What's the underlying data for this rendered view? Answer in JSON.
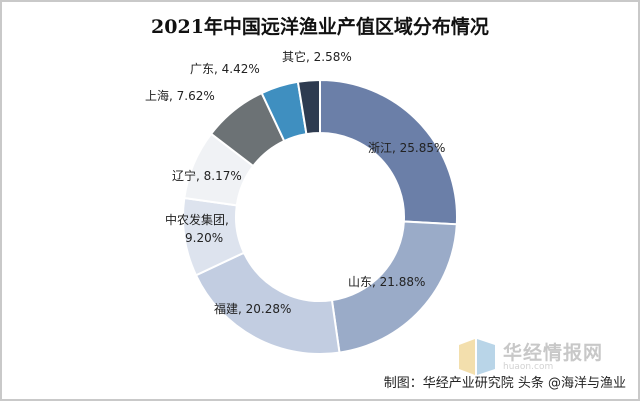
{
  "chart_data": {
    "type": "pie",
    "title": "2021年中国远洋渔业产值区域分布情况",
    "categories": [
      "浙江",
      "山东",
      "福建",
      "中农发集团",
      "辽宁",
      "上海",
      "广东",
      "其它"
    ],
    "values": [
      25.85,
      21.88,
      20.28,
      9.2,
      8.17,
      7.62,
      4.42,
      2.58
    ],
    "unit": "%",
    "labels": [
      "浙江, 25.85%",
      "山东, 21.88%",
      "福建, 20.28%",
      "中农发集团, 9.20%",
      "辽宁, 8.17%",
      "上海, 7.62%",
      "广东, 4.42%",
      "其它, 2.58%"
    ],
    "colors": [
      "#6b7fa8",
      "#9aabc8",
      "#c2cde1",
      "#dde3ee",
      "#f0f2f5",
      "#6c7275",
      "#3f8fc0",
      "#2e3b50"
    ],
    "legend": "none"
  },
  "watermark": {
    "text": "华经情报网",
    "sub": "huaon.com"
  },
  "source": "制图：华经产业研究院  头条 @海洋与渔业"
}
